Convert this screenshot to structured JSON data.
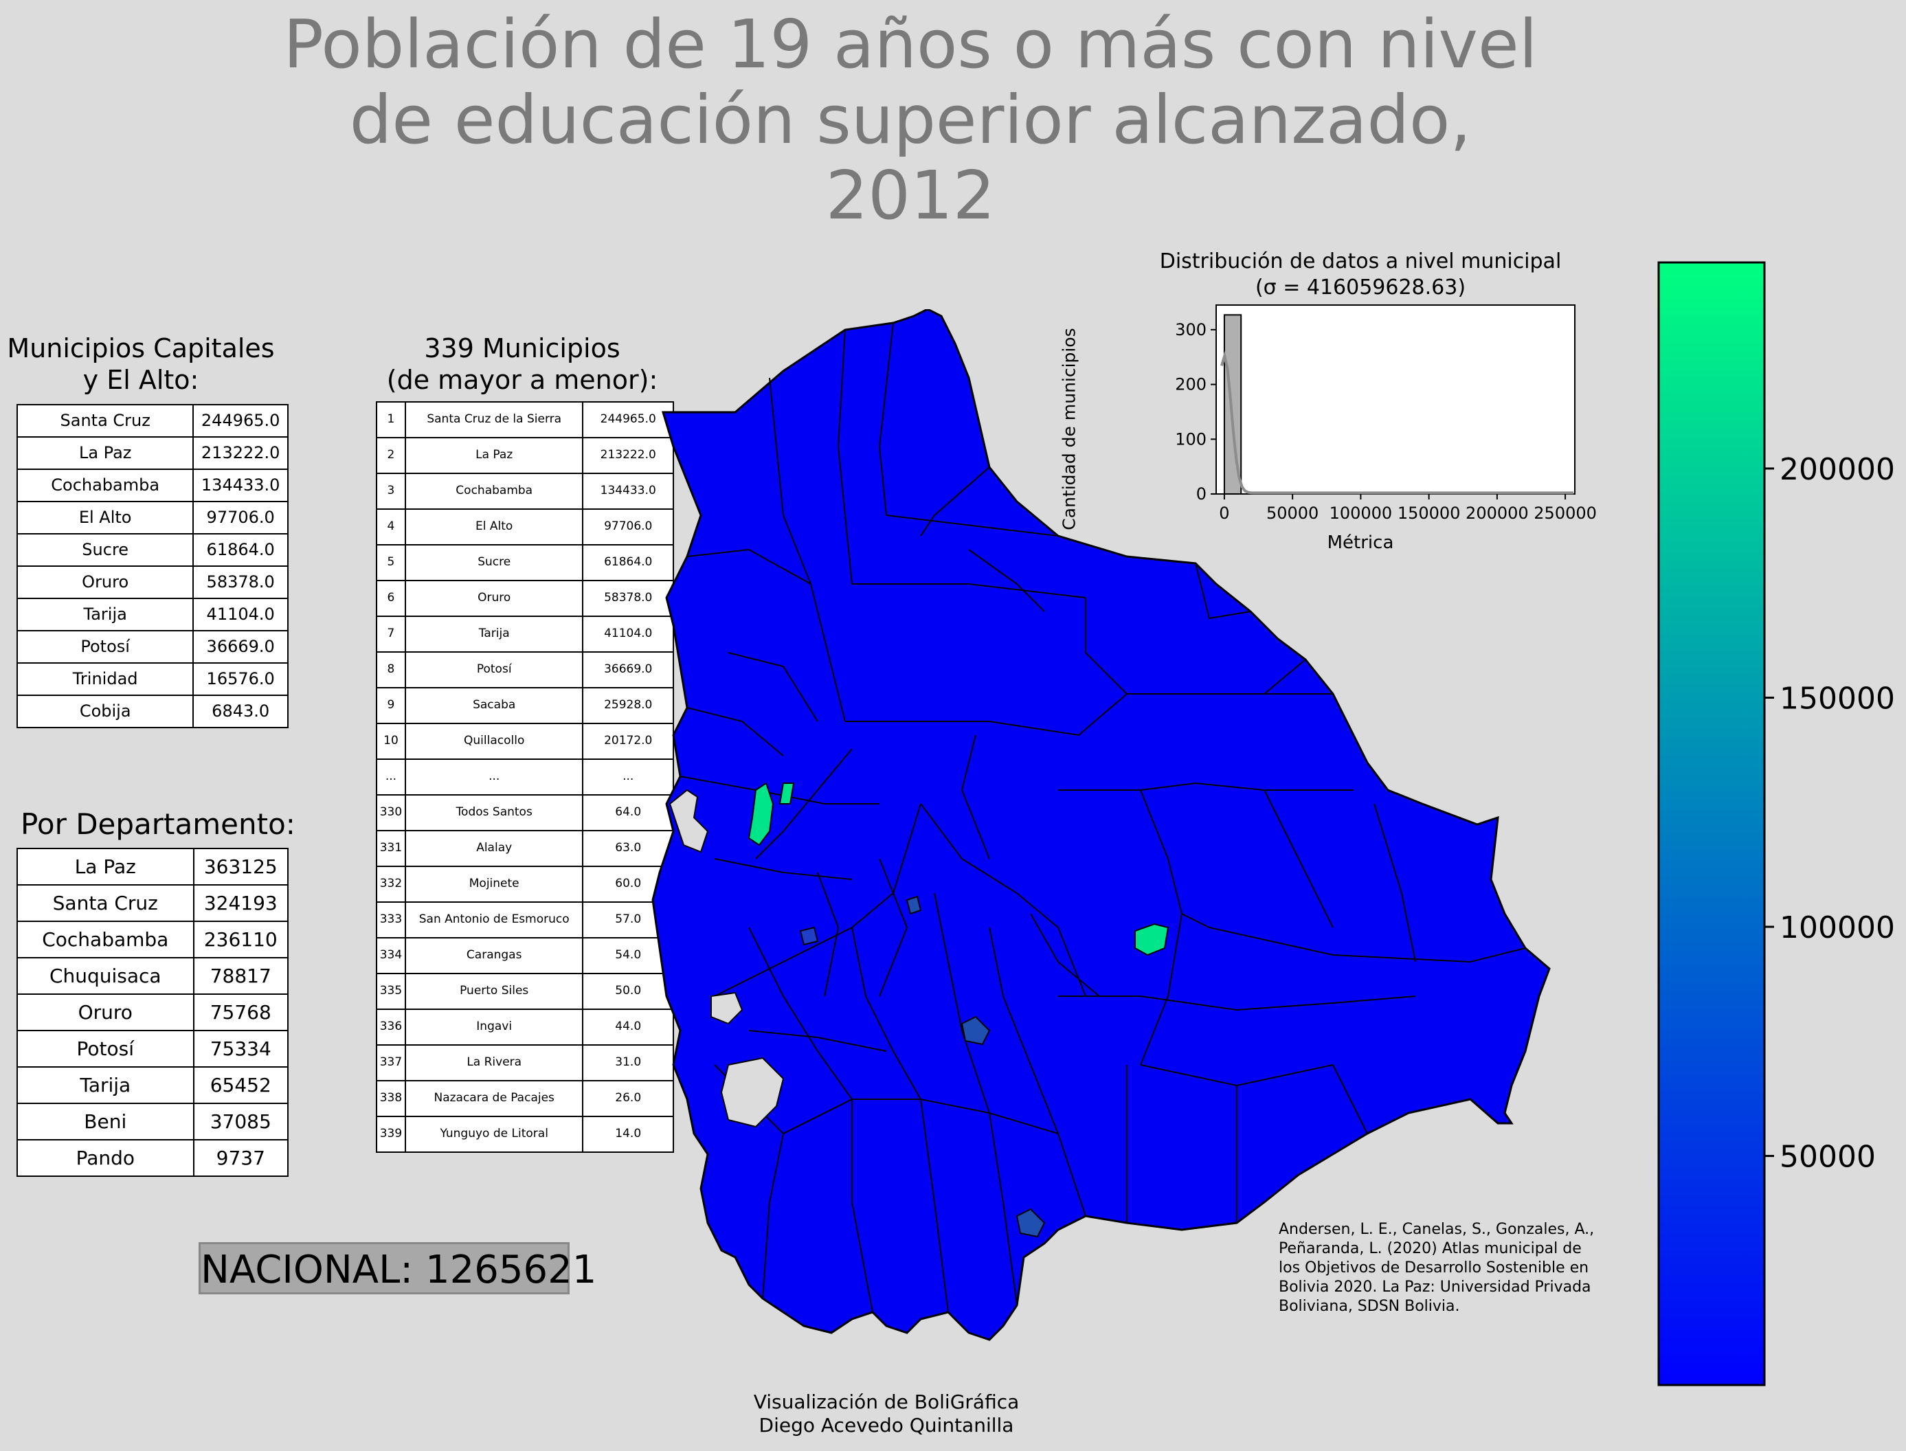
{
  "title_lines": [
    "Población de 19 años o más con nivel",
    "de educación superior alcanzado,",
    "2012"
  ],
  "capitals": {
    "title_lines": [
      "Municipios Capitales",
      "y El Alto:"
    ],
    "rows": [
      {
        "name": "Santa Cruz",
        "value": "244965.0"
      },
      {
        "name": "La Paz",
        "value": "213222.0"
      },
      {
        "name": "Cochabamba",
        "value": "134433.0"
      },
      {
        "name": "El Alto",
        "value": "97706.0"
      },
      {
        "name": "Sucre",
        "value": "61864.0"
      },
      {
        "name": "Oruro",
        "value": "58378.0"
      },
      {
        "name": "Tarija",
        "value": "41104.0"
      },
      {
        "name": "Potosí",
        "value": "36669.0"
      },
      {
        "name": "Trinidad",
        "value": "16576.0"
      },
      {
        "name": "Cobija",
        "value": "6843.0"
      }
    ]
  },
  "departments": {
    "title": "Por Departamento:",
    "rows": [
      {
        "name": "La Paz",
        "value": "363125"
      },
      {
        "name": "Santa Cruz",
        "value": "324193"
      },
      {
        "name": "Cochabamba",
        "value": "236110"
      },
      {
        "name": "Chuquisaca",
        "value": "78817"
      },
      {
        "name": "Oruro",
        "value": "75768"
      },
      {
        "name": "Potosí",
        "value": "75334"
      },
      {
        "name": "Tarija",
        "value": "65452"
      },
      {
        "name": "Beni",
        "value": "37085"
      },
      {
        "name": "Pando",
        "value": "9737"
      }
    ]
  },
  "municipalities": {
    "title_lines": [
      "339 Municipios",
      "(de mayor a menor):"
    ],
    "rows": [
      {
        "rank": "1",
        "name": "Santa Cruz de la Sierra",
        "value": "244965.0"
      },
      {
        "rank": "2",
        "name": "La Paz",
        "value": "213222.0"
      },
      {
        "rank": "3",
        "name": "Cochabamba",
        "value": "134433.0"
      },
      {
        "rank": "4",
        "name": "El Alto",
        "value": "97706.0"
      },
      {
        "rank": "5",
        "name": "Sucre",
        "value": "61864.0"
      },
      {
        "rank": "6",
        "name": "Oruro",
        "value": "58378.0"
      },
      {
        "rank": "7",
        "name": "Tarija",
        "value": "41104.0"
      },
      {
        "rank": "8",
        "name": "Potosí",
        "value": "36669.0"
      },
      {
        "rank": "9",
        "name": "Sacaba",
        "value": "25928.0"
      },
      {
        "rank": "10",
        "name": "Quillacollo",
        "value": "20172.0"
      },
      {
        "rank": "...",
        "name": "...",
        "value": "..."
      },
      {
        "rank": "330",
        "name": "Todos Santos",
        "value": "64.0"
      },
      {
        "rank": "331",
        "name": "Alalay",
        "value": "63.0"
      },
      {
        "rank": "332",
        "name": "Mojinete",
        "value": "60.0"
      },
      {
        "rank": "333",
        "name": "San Antonio de Esmoruco",
        "value": "57.0"
      },
      {
        "rank": "334",
        "name": "Carangas",
        "value": "54.0"
      },
      {
        "rank": "335",
        "name": "Puerto Siles",
        "value": "50.0"
      },
      {
        "rank": "336",
        "name": "Ingavi",
        "value": "44.0"
      },
      {
        "rank": "337",
        "name": "La Rivera",
        "value": "31.0"
      },
      {
        "rank": "338",
        "name": "Nazacara de Pacajes",
        "value": "26.0"
      },
      {
        "rank": "339",
        "name": "Yunguyo de Litoral",
        "value": "14.0"
      }
    ]
  },
  "nacional": "NACIONAL: 1265621",
  "histogram": {
    "title_lines": [
      "Distribución de datos a nivel municipal",
      "(σ = 416059628.63)"
    ],
    "xlabel": "Métrica",
    "ylabel": "Cantidad de municipios",
    "x_ticks": [
      "0",
      "50000",
      "100000",
      "150000",
      "200000",
      "250000"
    ],
    "y_ticks": [
      "0",
      "100",
      "200",
      "300"
    ],
    "xlim": [
      -6000,
      257000
    ],
    "ylim": [
      0,
      345
    ],
    "bins": [
      {
        "x0": 0,
        "x1": 12250,
        "count": 327
      }
    ],
    "bar_color": "#b0b0b0",
    "curve_color": "#8c8c8c"
  },
  "colorbar": {
    "ticks": [
      "50000",
      "100000",
      "150000",
      "200000"
    ],
    "min": 14,
    "max": 244965,
    "color_low": "#0000ff",
    "color_high": "#00ff80"
  },
  "citation": "Andersen, L. E., Canelas, S., Gonzales, A., Peñaranda, L. (2020) Atlas municipal de los Objetivos de Desarrollo Sostenible en Bolivia 2020. La Paz: Universidad Privada Boliviana, SDSN Bolivia.",
  "credits_lines": [
    "Visualización de BoliGráfica",
    "Diego Acevedo Quintanilla"
  ],
  "map_colors": {
    "base": "#0000f5",
    "border": "#000000",
    "lake": "#dcdcdc",
    "high": "#00e58a",
    "mid": "#1f4fb0"
  }
}
